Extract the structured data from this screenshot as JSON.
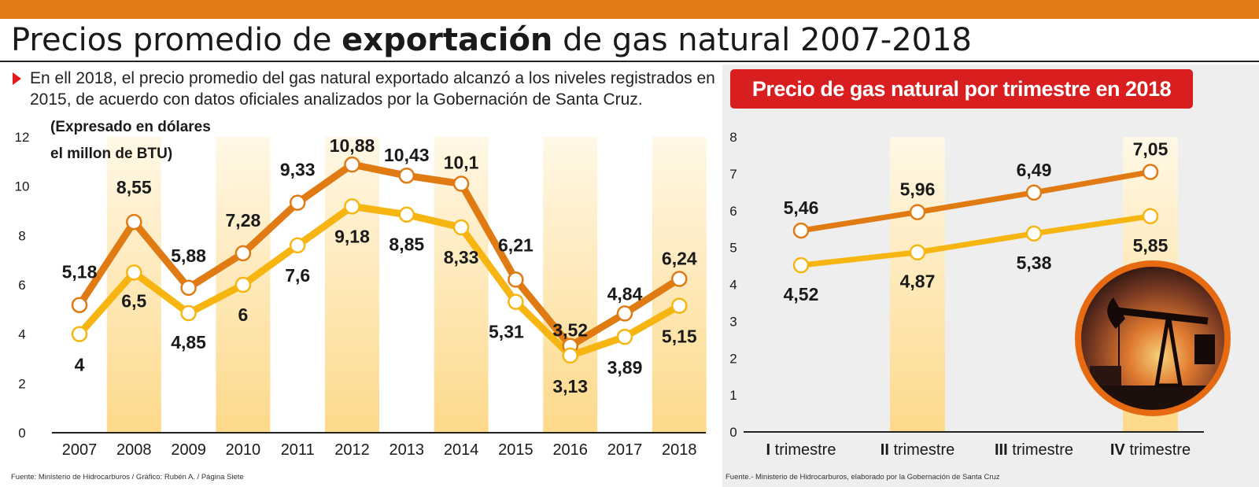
{
  "header": {
    "title_pre": "Precios promedio de ",
    "title_bold": "exportación",
    "title_post": " de gas natural 2007-2018",
    "intro": "En ell 2018, el precio promedio del gas natural exportado alcanzó a los niveles registrados en 2015, de acuerdo con datos oficiales analizados por la Gobernación de Santa Cruz."
  },
  "colors": {
    "accent": "#e07a12",
    "banner": "#d81e1e",
    "orange_series": "#e07a12",
    "yellow_series": "#f7b511",
    "band": "#fde4a4"
  },
  "chart_data": [
    {
      "type": "line",
      "annotation_line1": "(Expresado en dólares",
      "annotation_line2": "el millon de BTU)",
      "categories": [
        "2007",
        "2008",
        "2009",
        "2010",
        "2011",
        "2012",
        "2013",
        "2014",
        "2015",
        "2016",
        "2017",
        "2018"
      ],
      "ylim": [
        0,
        12
      ],
      "yticks": [
        "0",
        "2",
        "4",
        "6",
        "8",
        "10",
        "12"
      ],
      "grid": false,
      "series": [
        {
          "color": "#e07a12",
          "values": [
            5.18,
            8.55,
            5.88,
            7.28,
            9.33,
            10.88,
            10.43,
            10.1,
            6.21,
            3.52,
            4.84,
            6.24
          ],
          "labels": [
            "5,18",
            "8,55",
            "5,88",
            "7,28",
            "9,33",
            "10,88",
            "10,43",
            "10,1",
            "6,21",
            "3,52",
            "4,84",
            "6,24"
          ]
        },
        {
          "color": "#f7b511",
          "values": [
            4,
            6.5,
            4.85,
            6,
            7.6,
            9.18,
            8.85,
            8.33,
            5.31,
            3.13,
            3.89,
            5.15
          ],
          "labels": [
            "4",
            "6,5",
            "4,85",
            "6",
            "7,6",
            "9,18",
            "8,85",
            "8,33",
            "5,31",
            "3,13",
            "3,89",
            "5,15"
          ]
        }
      ]
    },
    {
      "type": "line",
      "title": "Precio de gas natural por trimestre en 2018",
      "categories": [
        "I trimestre",
        "II trimestre",
        "III trimestre",
        "IV trimestre"
      ],
      "category_parts": [
        [
          "I",
          " trimestre"
        ],
        [
          "II",
          " trimestre"
        ],
        [
          "III",
          " trimestre"
        ],
        [
          "IV",
          " trimestre"
        ]
      ],
      "ylim": [
        0,
        8
      ],
      "yticks": [
        "0",
        "1",
        "2",
        "3",
        "4",
        "5",
        "6",
        "7",
        "8"
      ],
      "grid": false,
      "series": [
        {
          "color": "#e07a12",
          "values": [
            5.46,
            5.96,
            6.49,
            7.05
          ],
          "labels": [
            "5,46",
            "5,96",
            "6,49",
            "7,05"
          ]
        },
        {
          "color": "#f7b511",
          "values": [
            4.52,
            4.87,
            5.38,
            5.85
          ],
          "labels": [
            "4,52",
            "4,87",
            "5,38",
            "5,85"
          ]
        }
      ]
    }
  ],
  "sources": {
    "left": "Fuente: Ministerio de Hidrocarburos / Gráfico:  Rubén A. / Página Siete",
    "right": "Fuente.- Ministerio de Hidrocarburos, elaborado por la Gobernación de Santa Cruz"
  },
  "photo": {
    "icon": "oil-pumpjack-sunset-photo"
  }
}
